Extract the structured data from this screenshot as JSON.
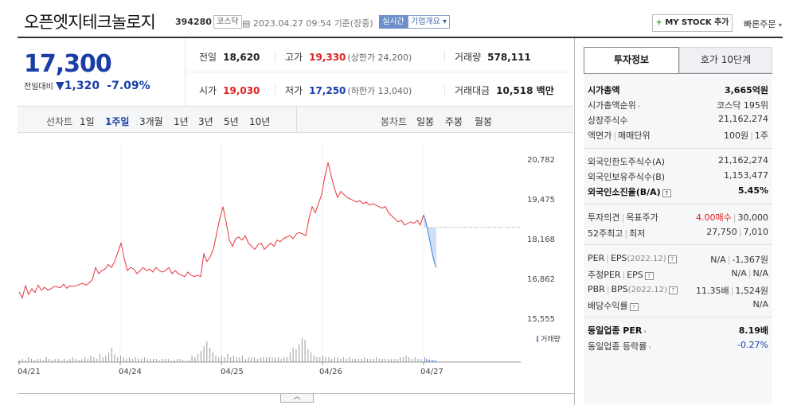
{
  "header": {
    "stock_name": "오픈엣지테크놀로지",
    "stock_code": "394280",
    "market_badge": "코스닥",
    "datetime": "2023.04.27 09:54 기준(장중)",
    "realtime_badge": "실시간",
    "company_overview": "기업개요",
    "company_overview_arrow": "▾",
    "mystock_plus": "+",
    "mystock_label": "MY STOCK 추가",
    "quick_order": "빠른주문",
    "quick_order_arrow": "▾"
  },
  "price": {
    "current": "17,300",
    "diff_label": "전일대비",
    "diff_arrow": "▼",
    "diff_value": "1,320",
    "diff_pct": "-7.09%"
  },
  "quote": {
    "prev_close_label": "전일",
    "prev_close": "18,620",
    "high_label": "고가",
    "high": "19,330",
    "upper_limit": "(상한가 24,200)",
    "volume_label": "거래량",
    "volume": "578,111",
    "open_label": "시가",
    "open": "19,030",
    "low_label": "저가",
    "low": "17,250",
    "lower_limit": "(하한가 13,040)",
    "amount_label": "거래대금",
    "amount": "10,518 백만"
  },
  "period_bar": {
    "line_chart_label": "선차트",
    "line_periods": [
      "1일",
      "1주일",
      "3개월",
      "1년",
      "3년",
      "5년",
      "10년"
    ],
    "active_period": "1주일",
    "candle_chart_label": "봉차트",
    "candle_periods": [
      "일봉",
      "주봉",
      "월봉"
    ]
  },
  "chart_data": {
    "type": "line",
    "title": "",
    "xlabel": "",
    "ylabel": "",
    "yticks": [
      "20,782",
      "19,475",
      "18,168",
      "16,862",
      "15,555"
    ],
    "ylim": [
      15555,
      20782
    ],
    "xticks": [
      "04/21",
      "04/24",
      "04/25",
      "04/26",
      "04/27"
    ],
    "legend": "거래량",
    "line_color": "#e8353b",
    "today_color": "#3f7fd6",
    "prev_close_ref": 18620,
    "series": [
      {
        "values": [
          16500,
          16300,
          16700,
          16420,
          16600,
          16480,
          16720,
          16550,
          16650,
          16560,
          16600,
          16680,
          16660,
          16640,
          16750,
          16620,
          16700,
          16680,
          16700,
          16750,
          16780,
          16720,
          16800,
          16900,
          17300,
          17100,
          17200,
          17250,
          17400,
          17300,
          17500,
          17800,
          18100,
          17600,
          17200,
          17300,
          17250,
          17100,
          17200,
          17300,
          17200,
          17250,
          17150,
          17300,
          17200,
          17150,
          17200,
          17300,
          17100,
          17200,
          17100,
          17050,
          17000,
          17150,
          17050,
          17000,
          17050,
          17000,
          17750,
          17500,
          17650,
          17900,
          18400,
          18900,
          19300,
          18800,
          18200,
          18000,
          18250,
          18300,
          18200,
          18350,
          18100,
          18000,
          17900,
          18050,
          18100,
          17900,
          18000,
          18100,
          18000,
          18200,
          18150,
          18250,
          18300,
          18350,
          18250,
          18400,
          18450,
          18400,
          18350,
          18900,
          19300,
          19100,
          19400,
          19700,
          20300,
          20750,
          20300,
          19900,
          19600,
          19800,
          19700,
          19600,
          19550,
          19500,
          19450,
          19500,
          19400,
          19450,
          19350,
          19400,
          19350,
          19300,
          19250,
          19300,
          19100,
          19000,
          18900,
          18800,
          18850,
          18700,
          18750,
          18800,
          18750,
          18850,
          18700,
          19030
        ]
      },
      {
        "name": "today",
        "values": [
          19030,
          18850,
          18600,
          18300,
          18000,
          17700,
          17450,
          17300
        ]
      }
    ],
    "volume": [
      1,
      2,
      1,
      3,
      2,
      1,
      2,
      2,
      1,
      3,
      2,
      1,
      2,
      2,
      1,
      2,
      1,
      2,
      3,
      2,
      1,
      2,
      3,
      2,
      4,
      3,
      2,
      5,
      3,
      4,
      6,
      9,
      5,
      3,
      4,
      3,
      2,
      3,
      2,
      3,
      2,
      2,
      3,
      2,
      2,
      2,
      2,
      1,
      2,
      2,
      2,
      1,
      1,
      2,
      2,
      1,
      1,
      1,
      4,
      3,
      5,
      7,
      10,
      13,
      9,
      6,
      4,
      3,
      4,
      3,
      5,
      3,
      4,
      3,
      3,
      4,
      2,
      3,
      3,
      3,
      2,
      3,
      3,
      3,
      3,
      3,
      3,
      3,
      2,
      3,
      3,
      6,
      9,
      8,
      11,
      15,
      14,
      8,
      6,
      4,
      3,
      3,
      4,
      3,
      3,
      2,
      3,
      3,
      2,
      3,
      2,
      3,
      2,
      2,
      2,
      2,
      3,
      2,
      2,
      2,
      3,
      2,
      2,
      2,
      2,
      2,
      2,
      2,
      3,
      3,
      4,
      3,
      2,
      3,
      2,
      2
    ]
  },
  "side": {
    "tab_invest": "투자정보",
    "tab_orderbook": "호가 10단계",
    "rows": {
      "market_cap_k": "시가총액",
      "market_cap_v": "3,665억원",
      "cap_rank_k": "시가총액순위",
      "cap_rank_v": "코스닥 195위",
      "shares_k": "상장주식수",
      "shares_v": "21,162,274",
      "par_k": "액면가",
      "trade_unit_k": "매매단위",
      "par_v": "100원",
      "trade_unit_v": "1주",
      "foreign_limit_k": "외국인한도주식수(A)",
      "foreign_limit_v": "21,162,274",
      "foreign_hold_k": "외국인보유주식수(B)",
      "foreign_hold_v": "1,153,477",
      "foreign_ratio_k": "외국인소진율(B/A)",
      "foreign_ratio_v": "5.45%",
      "opinion_k": "투자의견",
      "target_k": "목표주가",
      "opinion_v": "4.00매수",
      "target_v": "30,000",
      "w52_high_k": "52주최고",
      "w52_low_k": "최저",
      "w52_high_v": "27,750",
      "w52_low_v": "7,010",
      "per_k": "PER",
      "eps_k": "EPS",
      "eps_year": "(2022.12)",
      "per_v": "N/A",
      "eps_v": "-1,367원",
      "est_per_k": "추정PER",
      "est_eps_k": "EPS",
      "est_per_v": "N/A",
      "est_eps_v": "N/A",
      "pbr_k": "PBR",
      "bps_k": "BPS",
      "bps_year": "(2022.12)",
      "pbr_v": "11.35배",
      "bps_v": "1,524원",
      "div_k": "배당수익률",
      "div_v": "N/A",
      "ind_per_k": "동일업종 PER",
      "ind_per_v": "8.19배",
      "ind_rate_k": "동일업종 등락률",
      "ind_rate_v": "-0.27%"
    }
  },
  "ui": {
    "collapse": "︿"
  }
}
